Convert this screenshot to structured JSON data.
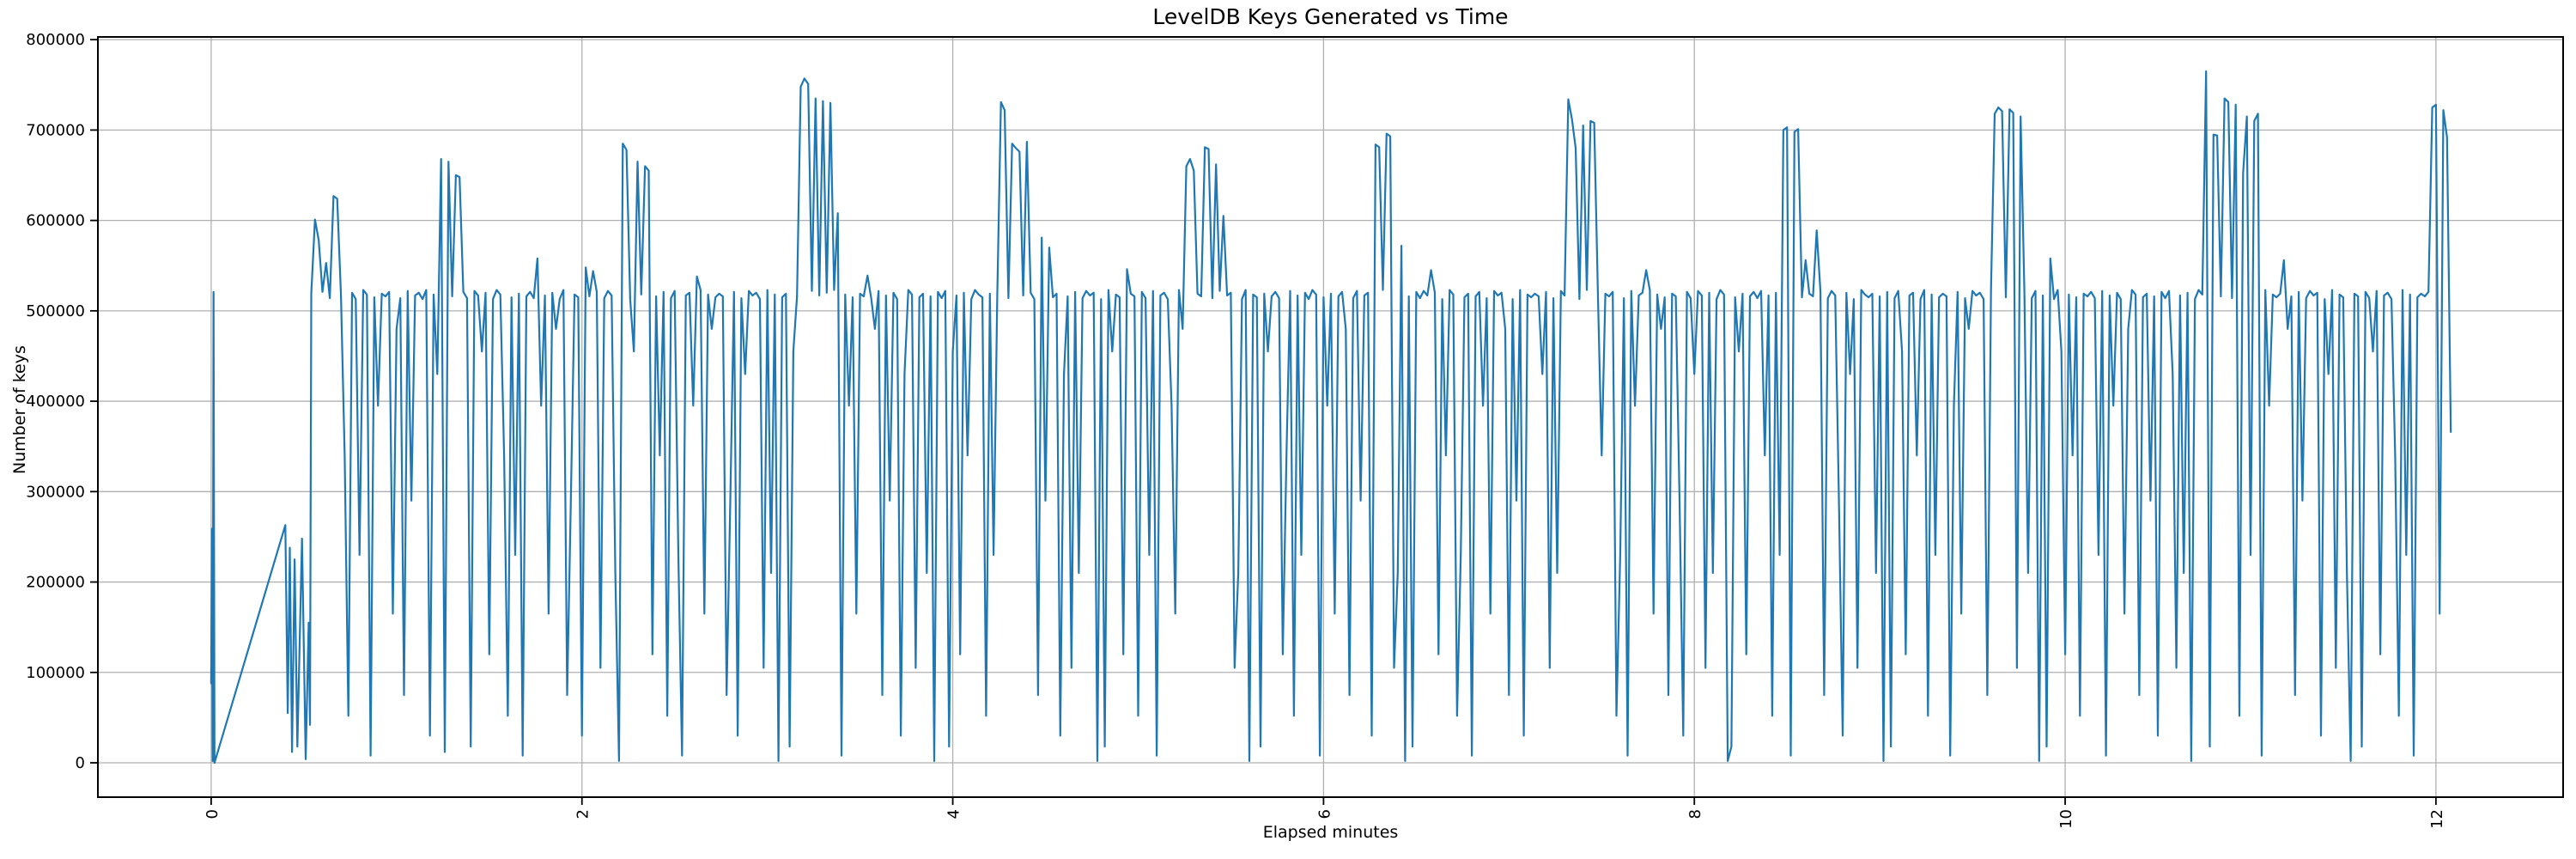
{
  "figure": {
    "title": "LevelDB Keys Generated vs Time",
    "xlabel": "Elapsed minutes",
    "ylabel": "Number of keys"
  },
  "chart_data": {
    "type": "line",
    "title": "LevelDB Keys Generated vs Time",
    "xlabel": "Elapsed minutes",
    "ylabel": "Number of keys",
    "legend": null,
    "grid": true,
    "grid_color": "#b0b0b0",
    "line_color": "#1f77b4",
    "spine_color": "#000000",
    "xlim": [
      -0.611,
      12.686
    ],
    "ylim": [
      -38000,
      803000
    ],
    "x_ticks": [
      0,
      2,
      4,
      6,
      8,
      10,
      12
    ],
    "x_tick_rotation": 90,
    "y_ticks": [
      0,
      100000,
      200000,
      300000,
      400000,
      500000,
      600000,
      700000,
      800000
    ],
    "description": "Noisy series: baseline ~520000 keys with frequent needle dips toward 0 and clusters of upward spikes (600k-765k) near minutes 0.6, 1.3, 2.3, 3.25, 4.35, 5.35, 6.35, 7.4, 8.55, 9.7, 10.9, 12.0; initial transient ramps from 0 to ~263k during minute 0-0.4",
    "series": {
      "name": "keys generated",
      "y_scale": 1000,
      "pre_points_t_y": [
        [
          0.0,
          88
        ],
        [
          0.004,
          259
        ],
        [
          0.008,
          2
        ],
        [
          0.013,
          521
        ],
        [
          0.018,
          0
        ],
        [
          0.4,
          263
        ],
        [
          0.413,
          55
        ],
        [
          0.424,
          238
        ],
        [
          0.436,
          12
        ],
        [
          0.45,
          225
        ],
        [
          0.465,
          18
        ],
        [
          0.49,
          248
        ],
        [
          0.51,
          4
        ],
        [
          0.526,
          155
        ],
        [
          0.533,
          42
        ]
      ],
      "dense_t0": 0.54,
      "dense_dt": 0.02,
      "dense_y": [
        519,
        601,
        578,
        521,
        553,
        514,
        627,
        624,
        517,
        340,
        52,
        520,
        513,
        230,
        523,
        518,
        8,
        515,
        395,
        519,
        516,
        521,
        165,
        480,
        514,
        75,
        522,
        290,
        517,
        520,
        513,
        523,
        30,
        518,
        430,
        668,
        12,
        665,
        516,
        650,
        648,
        521,
        514,
        18,
        522,
        517,
        455,
        520,
        120,
        513,
        523,
        518,
        340,
        52,
        515,
        230,
        519,
        8,
        516,
        521,
        514,
        558,
        395,
        517,
        165,
        520,
        480,
        513,
        523,
        75,
        290,
        518,
        515,
        30,
        548,
        516,
        544,
        521,
        105,
        514,
        522,
        517,
        210,
        2,
        685,
        678,
        513,
        455,
        665,
        518,
        660,
        655,
        120,
        516,
        340,
        521,
        52,
        514,
        522,
        230,
        8,
        517,
        520,
        395,
        538,
        523,
        165,
        518,
        480,
        515,
        519,
        516,
        75,
        290,
        521,
        30,
        514,
        430,
        522,
        517,
        520,
        513,
        105,
        523,
        210,
        518,
        2,
        515,
        519,
        18,
        455,
        516,
        748,
        757,
        751,
        522,
        735,
        517,
        732,
        520,
        730,
        523,
        608,
        8,
        518,
        395,
        515,
        165,
        519,
        516,
        539,
        514,
        480,
        522,
        75,
        517,
        290,
        520,
        513,
        30,
        430,
        523,
        518,
        105,
        515,
        519,
        210,
        516,
        2,
        521,
        514,
        522,
        18,
        455,
        517,
        120,
        520,
        340,
        513,
        523,
        518,
        515,
        52,
        519,
        230,
        516,
        731,
        722,
        514,
        685,
        680,
        676,
        517,
        687,
        520,
        513,
        75,
        581,
        290,
        570,
        515,
        519,
        30,
        430,
        516,
        105,
        521,
        210,
        514,
        522,
        517,
        520,
        2,
        513,
        18,
        523,
        455,
        518,
        515,
        120,
        546,
        519,
        516,
        52,
        521,
        514,
        230,
        522,
        8,
        517,
        520,
        513,
        395,
        165,
        523,
        480,
        660,
        668,
        655,
        519,
        516,
        681,
        679,
        514,
        662,
        522,
        605,
        517,
        520,
        105,
        210,
        513,
        523,
        2,
        518,
        515,
        18,
        519,
        455,
        516,
        521,
        514,
        120,
        340,
        522,
        52,
        517,
        230,
        520,
        513,
        523,
        518,
        8,
        515,
        395,
        519,
        165,
        516,
        521,
        480,
        75,
        514,
        522,
        290,
        517,
        520,
        30,
        684,
        681,
        523,
        696,
        693,
        105,
        210,
        572,
        2,
        516,
        18,
        521,
        514,
        522,
        517,
        545,
        520,
        120,
        513,
        340,
        523,
        518,
        52,
        230,
        515,
        519,
        8,
        516,
        521,
        395,
        514,
        165,
        522,
        517,
        520,
        480,
        75,
        513,
        290,
        523,
        30,
        518,
        515,
        519,
        516,
        430,
        521,
        105,
        514,
        210,
        522,
        517,
        734,
        712,
        680,
        513,
        705,
        523,
        710,
        708,
        515,
        340,
        519,
        516,
        521,
        52,
        230,
        514,
        8,
        522,
        395,
        517,
        520,
        545,
        523,
        165,
        518,
        480,
        515,
        75,
        519,
        516,
        290,
        30,
        521,
        514,
        430,
        522,
        517,
        105,
        520,
        210,
        513,
        523,
        518,
        2,
        18,
        515,
        455,
        519,
        120,
        516,
        521,
        514,
        522,
        340,
        517,
        52,
        520,
        230,
        700,
        703,
        8,
        698,
        701,
        515,
        556,
        519,
        516,
        589,
        521,
        75,
        514,
        522,
        517,
        290,
        30,
        520,
        430,
        513,
        105,
        523,
        518,
        515,
        519,
        210,
        516,
        2,
        521,
        18,
        514,
        522,
        455,
        120,
        517,
        520,
        340,
        513,
        523,
        52,
        518,
        230,
        515,
        519,
        516,
        8,
        395,
        521,
        165,
        514,
        480,
        522,
        517,
        520,
        513,
        75,
        523,
        718,
        725,
        721,
        515,
        723,
        719,
        105,
        715,
        521,
        210,
        514,
        522,
        2,
        517,
        18,
        558,
        513,
        523,
        455,
        120,
        518,
        340,
        515,
        52,
        519,
        516,
        521,
        514,
        230,
        522,
        8,
        517,
        395,
        520,
        513,
        165,
        480,
        523,
        518,
        75,
        515,
        519,
        290,
        516,
        30,
        521,
        514,
        522,
        430,
        105,
        517,
        210,
        520,
        2,
        513,
        523,
        518,
        765,
        18,
        695,
        694,
        516,
        735,
        731,
        514,
        728,
        52,
        652,
        715,
        230,
        710,
        718,
        8,
        523,
        395,
        518,
        515,
        519,
        556,
        480,
        516,
        75,
        521,
        290,
        514,
        522,
        517,
        520,
        30,
        513,
        430,
        523,
        105,
        518,
        515,
        210,
        2,
        519,
        516,
        18,
        521,
        514,
        455,
        522,
        120,
        517,
        520,
        513,
        340,
        52,
        523,
        230,
        518,
        8,
        515,
        519,
        516,
        521,
        725,
        728,
        165,
        722,
        692,
        366
      ]
    }
  }
}
